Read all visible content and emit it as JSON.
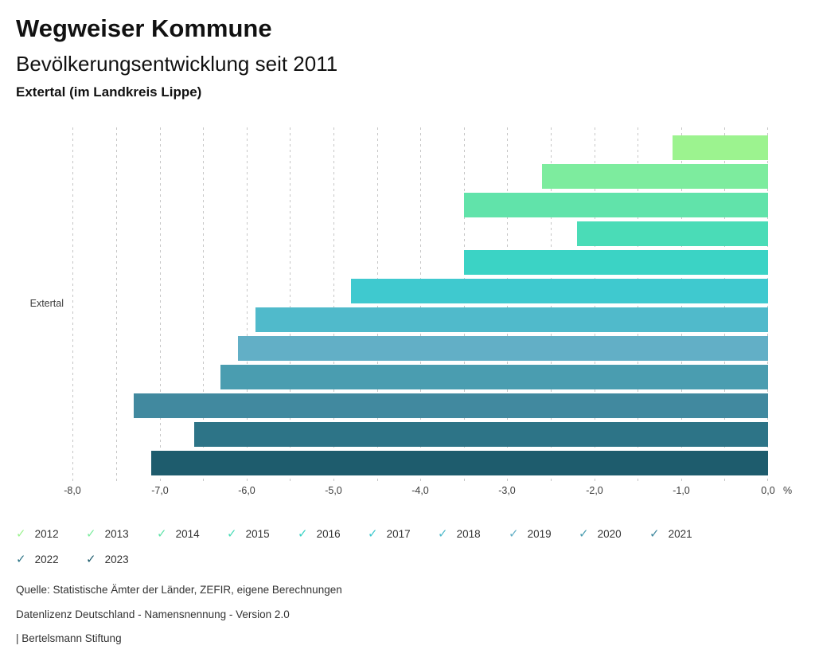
{
  "header": {
    "title": "Wegweiser Kommune",
    "subtitle": "Bevölkerungsentwicklung seit 2011",
    "region": "Extertal (im Landkreis Lippe)"
  },
  "chart_data": {
    "type": "bar",
    "orientation": "horizontal",
    "category_label": "Extertal",
    "unit": "%",
    "xlim": [
      -8.0,
      0.0
    ],
    "minor_tick_step": 0.5,
    "grid": "dashed-vertical",
    "legend_position": "bottom",
    "x_ticks": [
      -8,
      -7,
      -6,
      -5,
      -4,
      -3,
      -2,
      -1,
      0
    ],
    "x_tick_labels": [
      "-8,0",
      "-7,0",
      "-6,0",
      "-5,0",
      "-4,0",
      "-3,0",
      "-2,0",
      "-1,0",
      "0,0"
    ],
    "series": [
      {
        "year": "2012",
        "value": -1.1,
        "color": "#9cf38f"
      },
      {
        "year": "2013",
        "value": -2.6,
        "color": "#7dec9e"
      },
      {
        "year": "2014",
        "value": -3.5,
        "color": "#61e3aa"
      },
      {
        "year": "2015",
        "value": -2.2,
        "color": "#4adcb7"
      },
      {
        "year": "2016",
        "value": -3.5,
        "color": "#3bd3c5"
      },
      {
        "year": "2017",
        "value": -4.8,
        "color": "#3fc9cf"
      },
      {
        "year": "2018",
        "value": -5.9,
        "color": "#50bacb"
      },
      {
        "year": "2019",
        "value": -6.1,
        "color": "#62afc6"
      },
      {
        "year": "2020",
        "value": -6.3,
        "color": "#4a9db0"
      },
      {
        "year": "2021",
        "value": -7.3,
        "color": "#41899f"
      },
      {
        "year": "2022",
        "value": -6.6,
        "color": "#2d7487"
      },
      {
        "year": "2023",
        "value": -7.1,
        "color": "#1e5c6d"
      }
    ],
    "legend_check_icon": "✓"
  },
  "footer": {
    "source": "Quelle: Statistische Ämter der Länder, ZEFIR, eigene Berechnungen",
    "license": "Datenlizenz Deutschland - Namensnennung - Version 2.0",
    "attribution": "| Bertelsmann Stiftung"
  }
}
